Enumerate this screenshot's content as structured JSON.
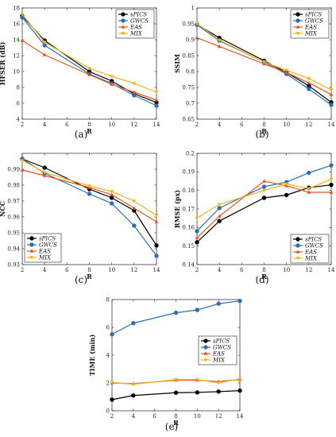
{
  "chart_data": [
    {
      "type": "line",
      "caption": "(a)",
      "xlabel": "R",
      "ylabel": "HFSER (dB)",
      "x": [
        2,
        4,
        8,
        10,
        12,
        14
      ],
      "xlim": [
        2,
        14
      ],
      "ylim": [
        4,
        18
      ],
      "xticks": [
        "2",
        "4",
        "6",
        "8",
        "10",
        "12",
        "14"
      ],
      "yticks": [
        "4",
        "6",
        "8",
        "10",
        "12",
        "14",
        "16",
        "18"
      ],
      "legend": "top-right",
      "grid": false,
      "series": [
        {
          "name": "sPICS",
          "color": "#000000",
          "values": [
            17.0,
            13.9,
            10.0,
            8.8,
            7.2,
            6.1
          ]
        },
        {
          "name": "GWCS",
          "color": "#2b6fb6",
          "values": [
            16.8,
            13.3,
            9.7,
            8.5,
            7.0,
            5.7
          ]
        },
        {
          "name": "EAS",
          "color": "#e8521c",
          "values": [
            13.9,
            12.1,
            9.6,
            8.4,
            7.4,
            6.4
          ]
        },
        {
          "name": "MIX",
          "color": "#f0b418",
          "values": [
            17.2,
            13.7,
            10.4,
            9.4,
            8.5,
            7.4
          ]
        }
      ]
    },
    {
      "type": "line",
      "caption": "(b)",
      "xlabel": "R",
      "ylabel": "SSIM",
      "x": [
        2,
        4,
        8,
        10,
        12,
        14
      ],
      "xlim": [
        2,
        14
      ],
      "ylim": [
        0.65,
        1
      ],
      "xticks": [
        "2",
        "4",
        "6",
        "8",
        "10",
        "12",
        "14"
      ],
      "yticks": [
        "0.65",
        "0.7",
        "0.75",
        "0.8",
        "0.85",
        "0.9",
        "0.95",
        "1"
      ],
      "legend": "top-right",
      "grid": false,
      "series": [
        {
          "name": "sPICS",
          "color": "#000000",
          "values": [
            0.948,
            0.906,
            0.834,
            0.797,
            0.755,
            0.703
          ]
        },
        {
          "name": "GWCS",
          "color": "#2b6fb6",
          "values": [
            0.947,
            0.897,
            0.83,
            0.792,
            0.745,
            0.695
          ]
        },
        {
          "name": "EAS",
          "color": "#e8521c",
          "values": [
            0.906,
            0.879,
            0.824,
            0.797,
            0.764,
            0.728
          ]
        },
        {
          "name": "MIX",
          "color": "#f0b418",
          "values": [
            0.951,
            0.899,
            0.83,
            0.804,
            0.778,
            0.742
          ]
        }
      ]
    },
    {
      "type": "line",
      "caption": "(c)",
      "xlabel": "R",
      "ylabel": "NCC",
      "x": [
        2,
        4,
        8,
        10,
        12,
        14
      ],
      "xlim": [
        2,
        14
      ],
      "ylim": [
        0.93,
        1.0
      ],
      "xticks": [
        "2",
        "4",
        "6",
        "8",
        "10",
        "12",
        "14"
      ],
      "yticks": [
        "0.93",
        "0.94",
        "0.95",
        "0.96",
        "0.97",
        "0.98",
        "0.99"
      ],
      "legend": "bottom-left",
      "grid": false,
      "series": [
        {
          "name": "sPICS",
          "color": "#000000",
          "values": [
            0.9965,
            0.991,
            0.9775,
            0.972,
            0.964,
            0.942
          ]
        },
        {
          "name": "GWCS",
          "color": "#2b6fb6",
          "values": [
            0.9965,
            0.9875,
            0.9745,
            0.9685,
            0.9545,
            0.9355
          ]
        },
        {
          "name": "EAS",
          "color": "#e8521c",
          "values": [
            0.9895,
            0.986,
            0.9785,
            0.974,
            0.9655,
            0.957
          ]
        },
        {
          "name": "MIX",
          "color": "#f0b418",
          "values": [
            0.9955,
            0.988,
            0.9795,
            0.976,
            0.97,
            0.961
          ]
        }
      ]
    },
    {
      "type": "line",
      "caption": "(d)",
      "xlabel": "R",
      "ylabel": "RMSE (px)",
      "x": [
        2,
        4,
        8,
        10,
        12,
        14
      ],
      "xlim": [
        2,
        14
      ],
      "ylim": [
        0.14,
        0.2
      ],
      "xticks": [
        "2",
        "4",
        "6",
        "8",
        "10",
        "12",
        "14"
      ],
      "yticks": [
        "0.14",
        "0.15",
        "0.16",
        "0.17",
        "0.18",
        "0.19",
        "0.2"
      ],
      "legend": "bottom-right",
      "grid": false,
      "series": [
        {
          "name": "sPICS",
          "color": "#000000",
          "values": [
            0.152,
            0.1635,
            0.176,
            0.1775,
            0.1815,
            0.183
          ]
        },
        {
          "name": "GWCS",
          "color": "#2b6fb6",
          "values": [
            0.158,
            0.1705,
            0.182,
            0.1845,
            0.1895,
            0.1935
          ]
        },
        {
          "name": "EAS",
          "color": "#e8521c",
          "values": [
            0.1545,
            0.166,
            0.185,
            0.1825,
            0.179,
            0.179
          ]
        },
        {
          "name": "MIX",
          "color": "#f0b418",
          "values": [
            0.165,
            0.1725,
            0.18,
            0.1835,
            0.181,
            0.186
          ]
        }
      ]
    },
    {
      "type": "line",
      "caption": "(e)",
      "xlabel": "R",
      "ylabel": "TIME (min)",
      "x": [
        2,
        4,
        8,
        10,
        12,
        14
      ],
      "xlim": [
        2,
        14
      ],
      "ylim": [
        0,
        8
      ],
      "xticks": [
        "2",
        "4",
        "6",
        "8",
        "10",
        "12",
        "14"
      ],
      "yticks": [
        "0",
        "2",
        "4",
        "6",
        "8"
      ],
      "legend": "center-right",
      "grid": false,
      "series": [
        {
          "name": "sPICS",
          "color": "#000000",
          "values": [
            0.8,
            1.1,
            1.3,
            1.32,
            1.38,
            1.45
          ]
        },
        {
          "name": "GWCS",
          "color": "#2b6fb6",
          "values": [
            5.5,
            6.3,
            7.05,
            7.25,
            7.7,
            7.9
          ]
        },
        {
          "name": "EAS",
          "color": "#e8521c",
          "values": [
            2.0,
            1.95,
            2.2,
            2.2,
            2.1,
            2.25
          ]
        },
        {
          "name": "MIX",
          "color": "#f0b418",
          "values": [
            2.05,
            1.9,
            2.25,
            2.25,
            2.0,
            2.3
          ]
        }
      ]
    }
  ]
}
